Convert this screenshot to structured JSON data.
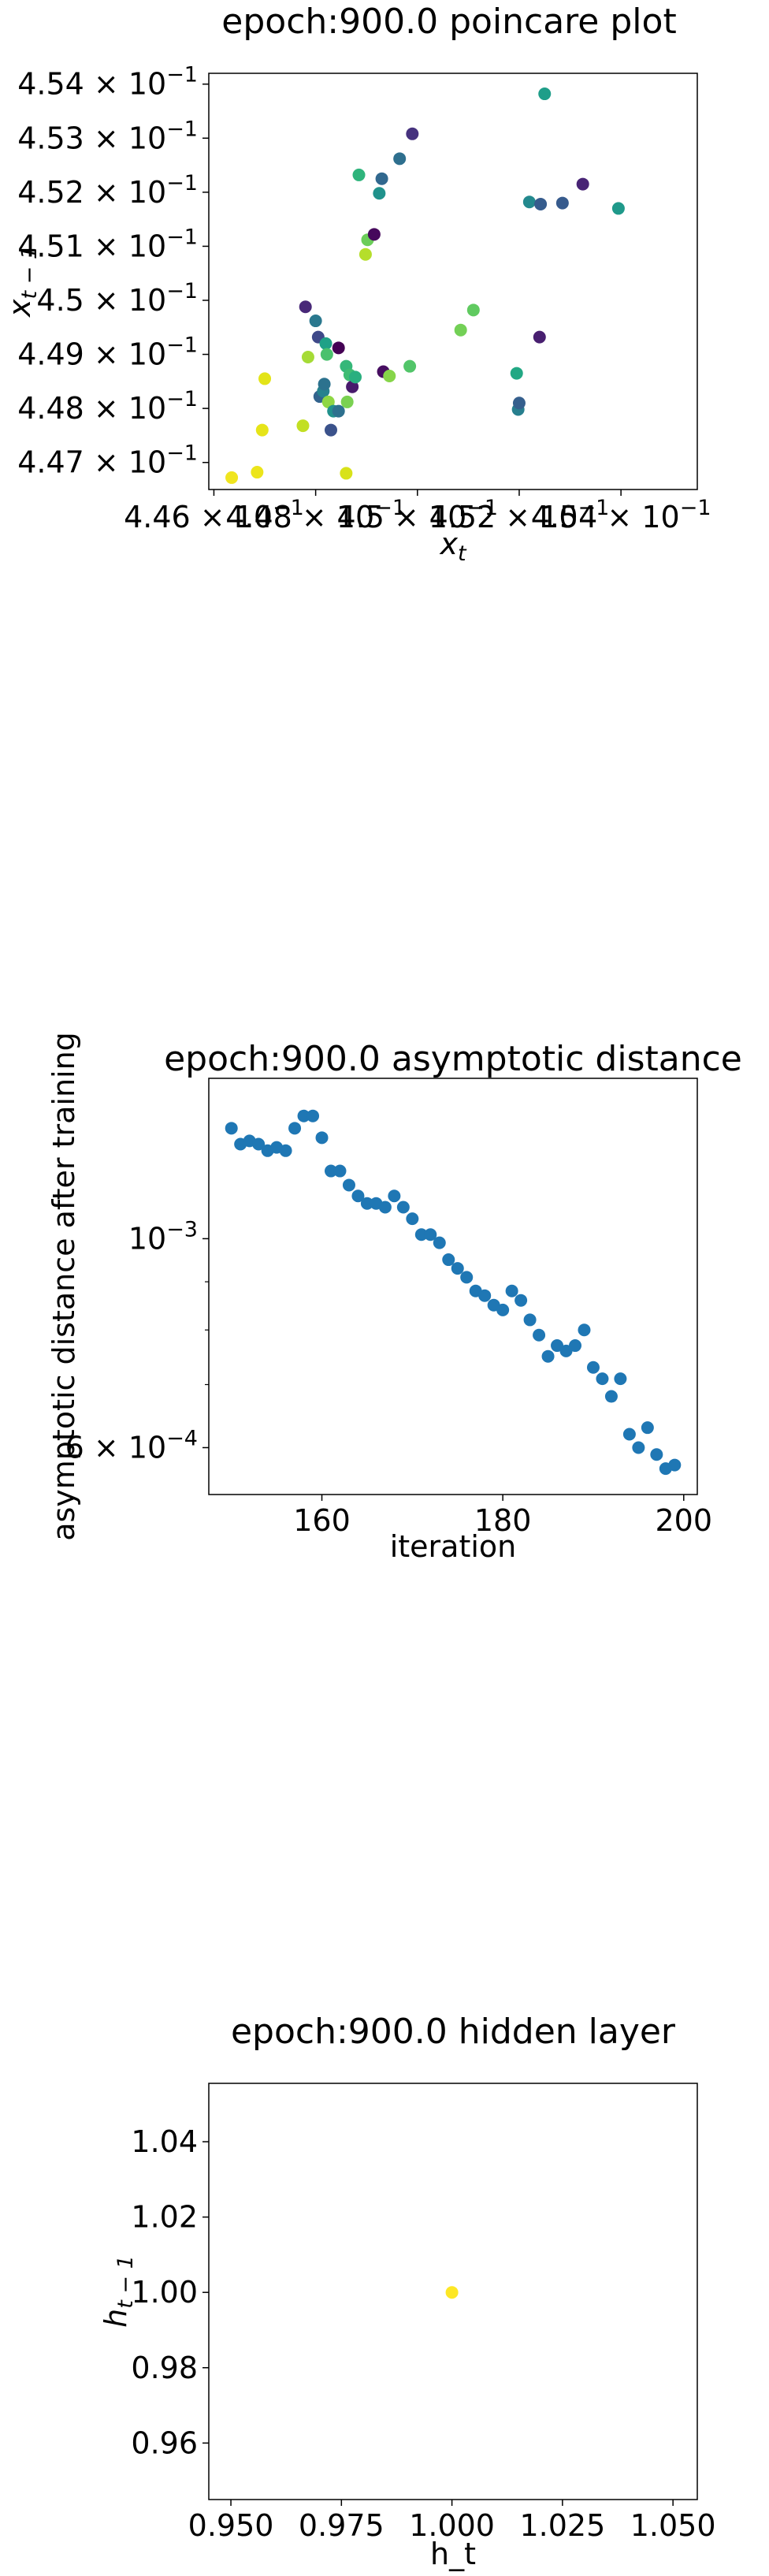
{
  "chart_data": [
    {
      "type": "scatter",
      "title": "epoch:900.0 poincare plot",
      "xlabel": "x_t",
      "ylabel": "x_{t-1}",
      "xlim": [
        0.4459,
        0.4555
      ],
      "ylim": [
        0.4465,
        0.4542
      ],
      "x_ticks": [
        {
          "value": 0.446,
          "base": "4.46 × 10",
          "exp": "−1"
        },
        {
          "value": 0.448,
          "base": "4.48 × 10",
          "exp": "−1"
        },
        {
          "value": 0.45,
          "base": "4.5 × 10",
          "exp": "−1"
        },
        {
          "value": 0.452,
          "base": "4.52 × 10",
          "exp": "−1"
        },
        {
          "value": 0.454,
          "base": "4.54 × 10",
          "exp": "−1"
        }
      ],
      "y_ticks": [
        {
          "value": 0.447,
          "base": "4.47 × 10",
          "exp": "−1"
        },
        {
          "value": 0.448,
          "base": "4.48 × 10",
          "exp": "−1"
        },
        {
          "value": 0.449,
          "base": "4.49 × 10",
          "exp": "−1"
        },
        {
          "value": 0.45,
          "base": "4.5 × 10",
          "exp": "−1"
        },
        {
          "value": 0.451,
          "base": "4.51 × 10",
          "exp": "−1"
        },
        {
          "value": 0.452,
          "base": "4.52 × 10",
          "exp": "−1"
        },
        {
          "value": 0.453,
          "base": "4.53 × 10",
          "exp": "−1"
        },
        {
          "value": 0.454,
          "base": "4.54 × 10",
          "exp": "−1"
        }
      ],
      "grid": false,
      "colormap": "viridis",
      "points": [
        {
          "x": 0.44635,
          "y": 0.44672,
          "c": "#f0e51f"
        },
        {
          "x": 0.44685,
          "y": 0.44682,
          "c": "#ece51b"
        },
        {
          "x": 0.44695,
          "y": 0.4476,
          "c": "#e6e419"
        },
        {
          "x": 0.447,
          "y": 0.44855,
          "c": "#e3e418"
        },
        {
          "x": 0.44775,
          "y": 0.44768,
          "c": "#c2df23"
        },
        {
          "x": 0.4478,
          "y": 0.44988,
          "c": "#482878"
        },
        {
          "x": 0.44785,
          "y": 0.44895,
          "c": "#a5db36"
        },
        {
          "x": 0.448,
          "y": 0.44962,
          "c": "#2a788e"
        },
        {
          "x": 0.44805,
          "y": 0.44932,
          "c": "#3e4989"
        },
        {
          "x": 0.44808,
          "y": 0.44822,
          "c": "#33638d"
        },
        {
          "x": 0.44815,
          "y": 0.44832,
          "c": "#26828e"
        },
        {
          "x": 0.44817,
          "y": 0.44845,
          "c": "#2c728e"
        },
        {
          "x": 0.4482,
          "y": 0.4492,
          "c": "#1fa187"
        },
        {
          "x": 0.44822,
          "y": 0.449,
          "c": "#4ac16d"
        },
        {
          "x": 0.44825,
          "y": 0.44812,
          "c": "#8fd744"
        },
        {
          "x": 0.4483,
          "y": 0.4476,
          "c": "#3b528b"
        },
        {
          "x": 0.44835,
          "y": 0.44795,
          "c": "#21918c"
        },
        {
          "x": 0.44845,
          "y": 0.44795,
          "c": "#2d708e"
        },
        {
          "x": 0.44845,
          "y": 0.44912,
          "c": "#440154"
        },
        {
          "x": 0.4486,
          "y": 0.4468,
          "c": "#d8e219"
        },
        {
          "x": 0.4486,
          "y": 0.44878,
          "c": "#35b779"
        },
        {
          "x": 0.44862,
          "y": 0.44812,
          "c": "#7ad151"
        },
        {
          "x": 0.44867,
          "y": 0.44862,
          "c": "#3fbc73"
        },
        {
          "x": 0.44872,
          "y": 0.4484,
          "c": "#481a6c"
        },
        {
          "x": 0.44878,
          "y": 0.44858,
          "c": "#29af7f"
        },
        {
          "x": 0.44885,
          "y": 0.45232,
          "c": "#2fb47c"
        },
        {
          "x": 0.44898,
          "y": 0.45085,
          "c": "#b5de2b"
        },
        {
          "x": 0.44902,
          "y": 0.45112,
          "c": "#6ccd5a"
        },
        {
          "x": 0.44915,
          "y": 0.45122,
          "c": "#46085c"
        },
        {
          "x": 0.44925,
          "y": 0.45198,
          "c": "#20928c"
        },
        {
          "x": 0.4493,
          "y": 0.45225,
          "c": "#31688e"
        },
        {
          "x": 0.44933,
          "y": 0.44868,
          "c": "#470e61"
        },
        {
          "x": 0.44945,
          "y": 0.4486,
          "c": "#86d549"
        },
        {
          "x": 0.44965,
          "y": 0.45262,
          "c": "#2e6f8e"
        },
        {
          "x": 0.44985,
          "y": 0.44878,
          "c": "#52c569"
        },
        {
          "x": 0.4499,
          "y": 0.45308,
          "c": "#46327e"
        },
        {
          "x": 0.45085,
          "y": 0.44945,
          "c": "#73d056"
        },
        {
          "x": 0.4511,
          "y": 0.44982,
          "c": "#60ca60"
        },
        {
          "x": 0.45195,
          "y": 0.44865,
          "c": "#22a884"
        },
        {
          "x": 0.45198,
          "y": 0.44798,
          "c": "#277f8e"
        },
        {
          "x": 0.452,
          "y": 0.4481,
          "c": "#355f8d"
        },
        {
          "x": 0.4522,
          "y": 0.45182,
          "c": "#23898e"
        },
        {
          "x": 0.4524,
          "y": 0.44932,
          "c": "#481f70"
        },
        {
          "x": 0.45242,
          "y": 0.45178,
          "c": "#365c8d"
        },
        {
          "x": 0.4525,
          "y": 0.45382,
          "c": "#1f9e89"
        },
        {
          "x": 0.45285,
          "y": 0.4518,
          "c": "#375b8d"
        },
        {
          "x": 0.45325,
          "y": 0.45215,
          "c": "#482475"
        },
        {
          "x": 0.45395,
          "y": 0.4517,
          "c": "#1f998a"
        }
      ]
    },
    {
      "type": "scatter",
      "title": "epoch:900.0 asymptotic distance",
      "xlabel": "iteration",
      "ylabel": "asymptotic distance after training",
      "y_scale": "log",
      "xlim": [
        147.5,
        201.5
      ],
      "ylim": [
        0.000535,
        0.00148
      ],
      "x_ticks": [
        160,
        180,
        200
      ],
      "y_ticks": [
        {
          "value": 0.001,
          "base": "10",
          "exp": "−3"
        },
        {
          "value": 0.0006,
          "base": "6 × 10",
          "exp": "−4"
        }
      ],
      "y_minor_ticks": [
        0.0007,
        0.0008,
        0.0009
      ],
      "grid": false,
      "color": "#1f77b4",
      "x": [
        150,
        151,
        152,
        153,
        154,
        155,
        156,
        157,
        158,
        159,
        160,
        161,
        162,
        163,
        164,
        165,
        166,
        167,
        168,
        169,
        170,
        171,
        172,
        173,
        174,
        175,
        176,
        177,
        178,
        179,
        180,
        181,
        182,
        183,
        184,
        185,
        186,
        187,
        188,
        189,
        190,
        191,
        192,
        193,
        194,
        195,
        196,
        197,
        198,
        199
      ],
      "values": [
        0.00131,
        0.00126,
        0.00127,
        0.00126,
        0.00124,
        0.00125,
        0.00124,
        0.00131,
        0.00135,
        0.00135,
        0.00128,
        0.00118,
        0.00118,
        0.00114,
        0.00111,
        0.00109,
        0.00109,
        0.00108,
        0.00111,
        0.00108,
        0.00105,
        0.00101,
        0.00101,
        0.00099,
        0.00095,
        0.00093,
        0.00091,
        0.00088,
        0.00087,
        0.00085,
        0.00084,
        0.00088,
        0.00086,
        0.00082,
        0.00079,
        0.00075,
        0.00077,
        0.00076,
        0.00077,
        0.0008,
        0.00073,
        0.00071,
        0.00068,
        0.00071,
        0.00062,
        0.0006,
        0.00063,
        0.00059,
        0.00057,
        0.000575
      ]
    },
    {
      "type": "scatter",
      "title": "epoch:900.0 hidden layer",
      "xlabel": "h_t",
      "ylabel": "h_{t-1}",
      "xlim": [
        0.945,
        1.0555
      ],
      "ylim": [
        0.945,
        1.0555
      ],
      "x_ticks": [
        "0.950",
        "0.975",
        "1.000",
        "1.025",
        "1.050"
      ],
      "y_ticks": [
        "0.96",
        "0.98",
        "1.00",
        "1.02",
        "1.04"
      ],
      "grid": false,
      "points": [
        {
          "x": 1.0,
          "y": 1.0,
          "c": "#fde725"
        }
      ]
    }
  ]
}
